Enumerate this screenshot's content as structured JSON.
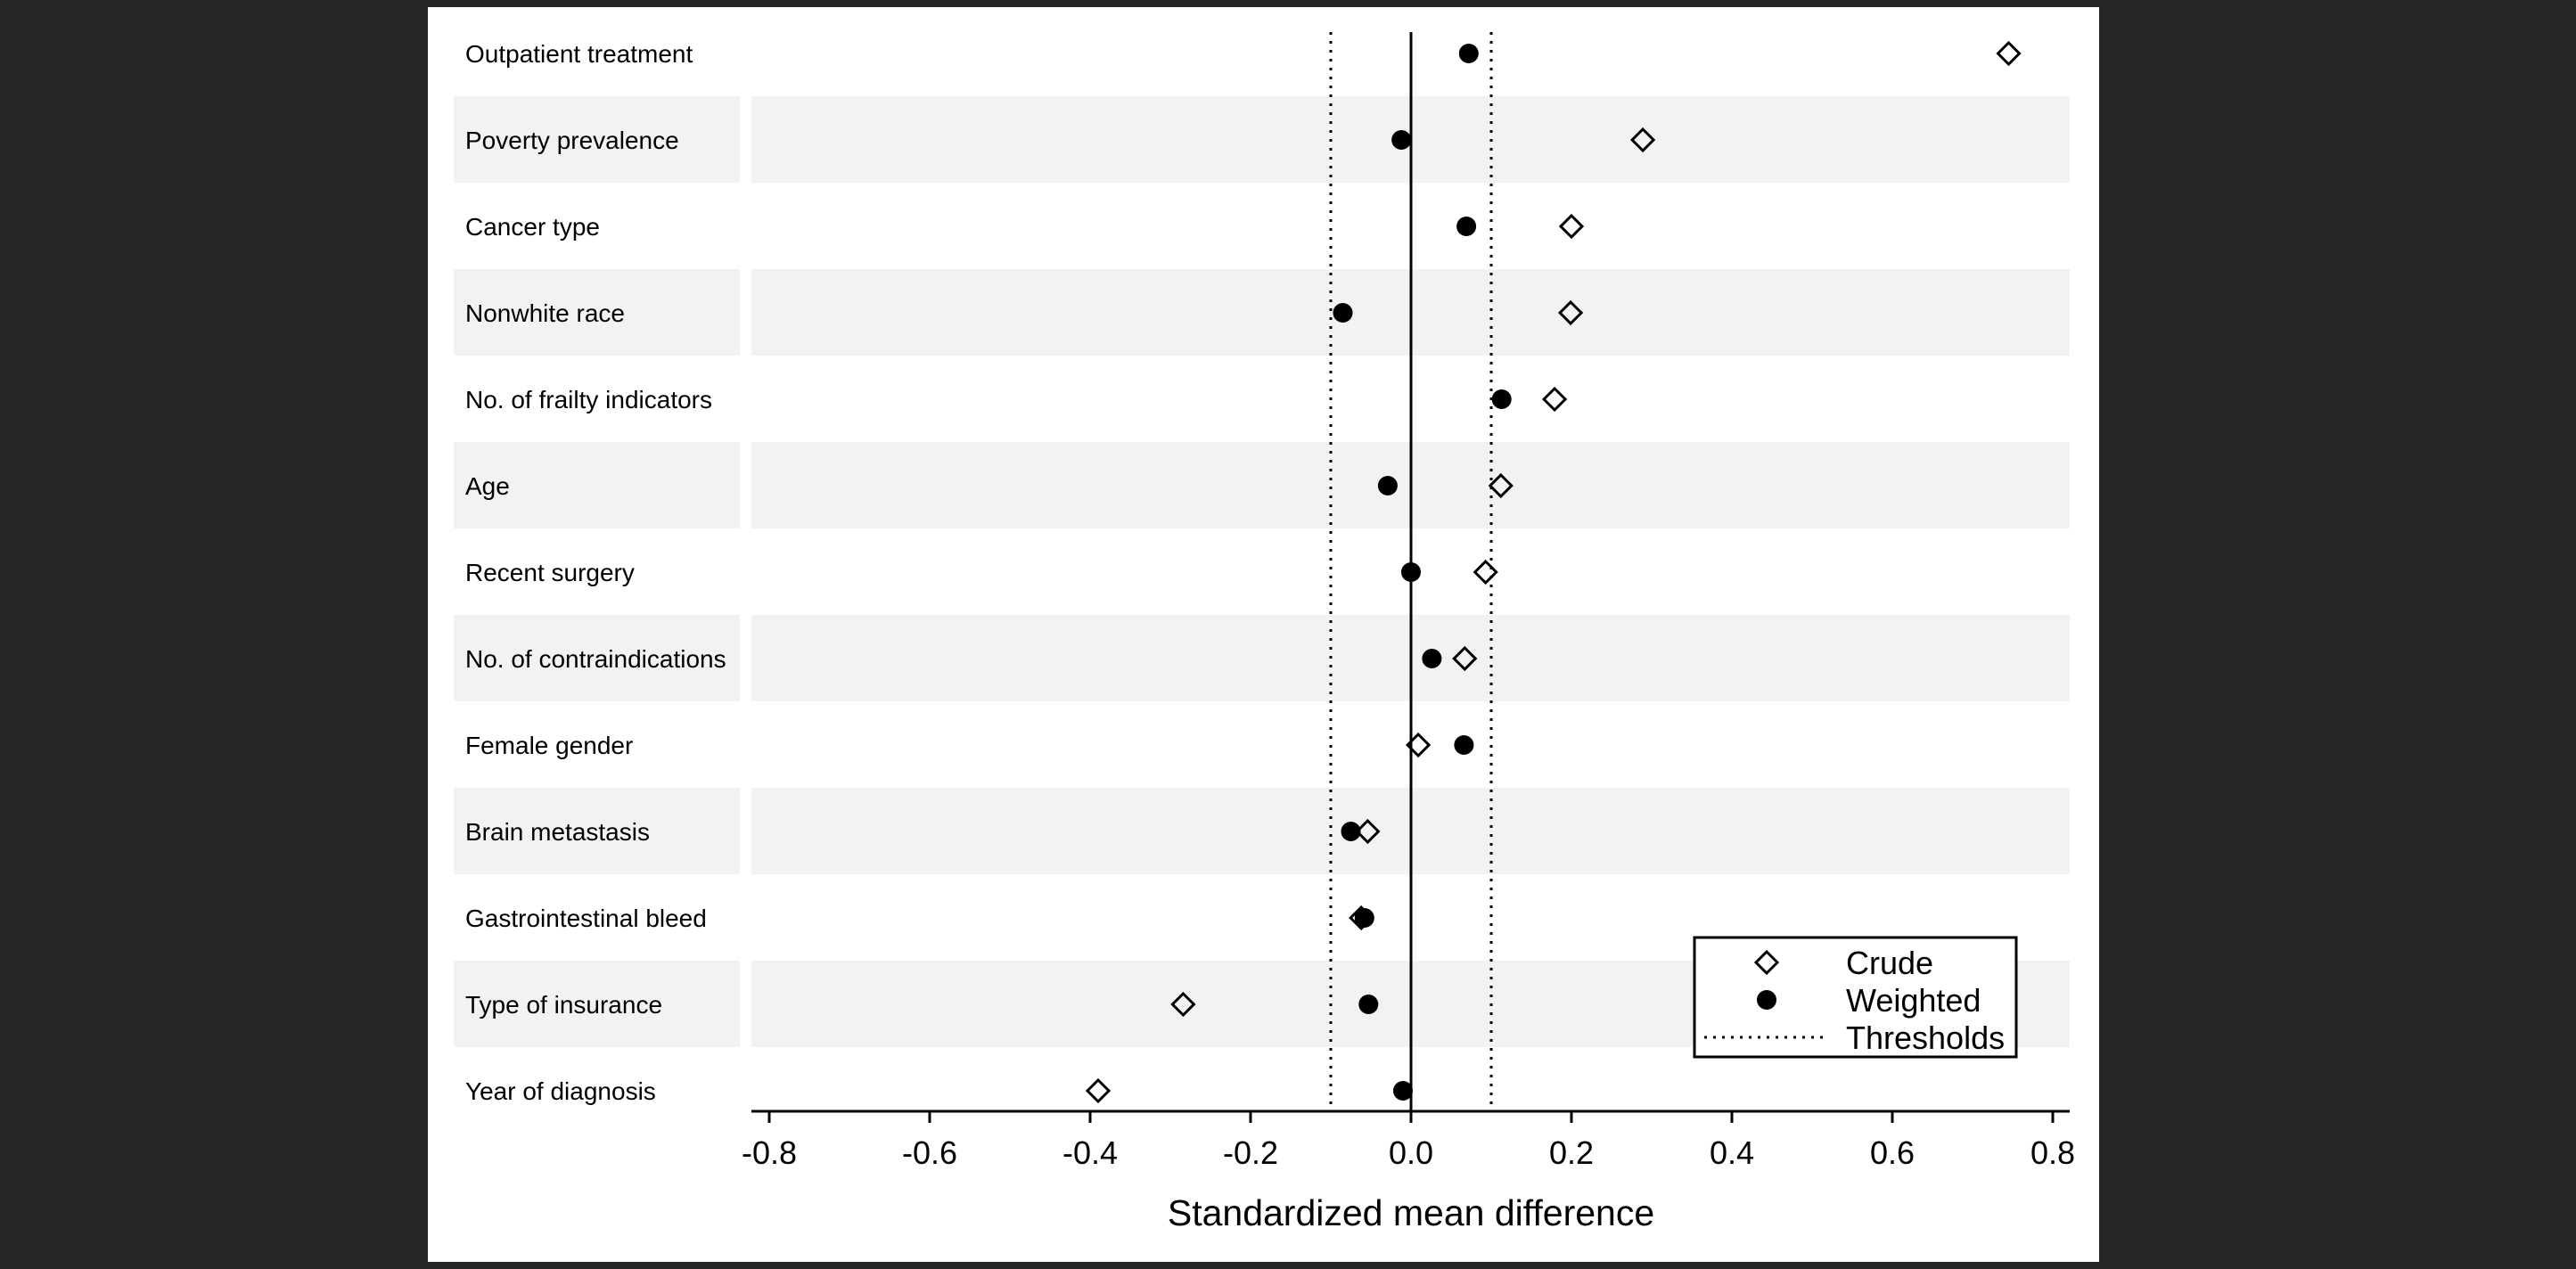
{
  "colors": {
    "background": "#262626",
    "panel": "#ffffff",
    "band": "#f2f2f2",
    "ink": "#000000"
  },
  "chart_data": {
    "type": "scatter",
    "title": "",
    "xlabel": "Standardized mean difference",
    "ylabel": "",
    "xlim": [
      -0.8,
      0.8
    ],
    "xticks": [
      -0.8,
      -0.6,
      -0.4,
      -0.2,
      0.0,
      0.2,
      0.4,
      0.6,
      0.8
    ],
    "xtick_labels": [
      "-0.8",
      "-0.6",
      "-0.4",
      "-0.2",
      "0.0",
      "0.2",
      "0.4",
      "0.6",
      "0.8"
    ],
    "grid": false,
    "alternating_row_bands": true,
    "reference_line": 0,
    "thresholds": [
      -0.1,
      0.1
    ],
    "legend_position": "bottom-right",
    "legend": [
      {
        "label": "Crude",
        "marker": "hollow-diamond"
      },
      {
        "label": "Weighted",
        "marker": "filled-circle"
      },
      {
        "label": "Thresholds",
        "marker": "dotted-line"
      }
    ],
    "categories": [
      "Outpatient treatment",
      "Poverty prevalence",
      "Cancer type",
      "Nonwhite race",
      "No. of frailty indicators",
      "Age",
      "Recent surgery",
      "No. of contraindications",
      "Female gender",
      "Brain metastasis",
      "Gastrointestinal bleed",
      "Type of insurance",
      "Year of diagnosis"
    ],
    "series": [
      {
        "name": "Crude",
        "marker": "hollow-diamond",
        "values": [
          0.745,
          0.289,
          0.2,
          0.199,
          0.179,
          0.112,
          0.093,
          0.067,
          0.009,
          -0.054,
          -0.062,
          -0.284,
          -0.39
        ]
      },
      {
        "name": "Weighted",
        "marker": "filled-circle",
        "values": [
          0.072,
          -0.012,
          0.069,
          -0.085,
          0.113,
          -0.029,
          0.0,
          0.026,
          0.066,
          -0.075,
          -0.058,
          -0.053,
          -0.01
        ]
      }
    ]
  }
}
